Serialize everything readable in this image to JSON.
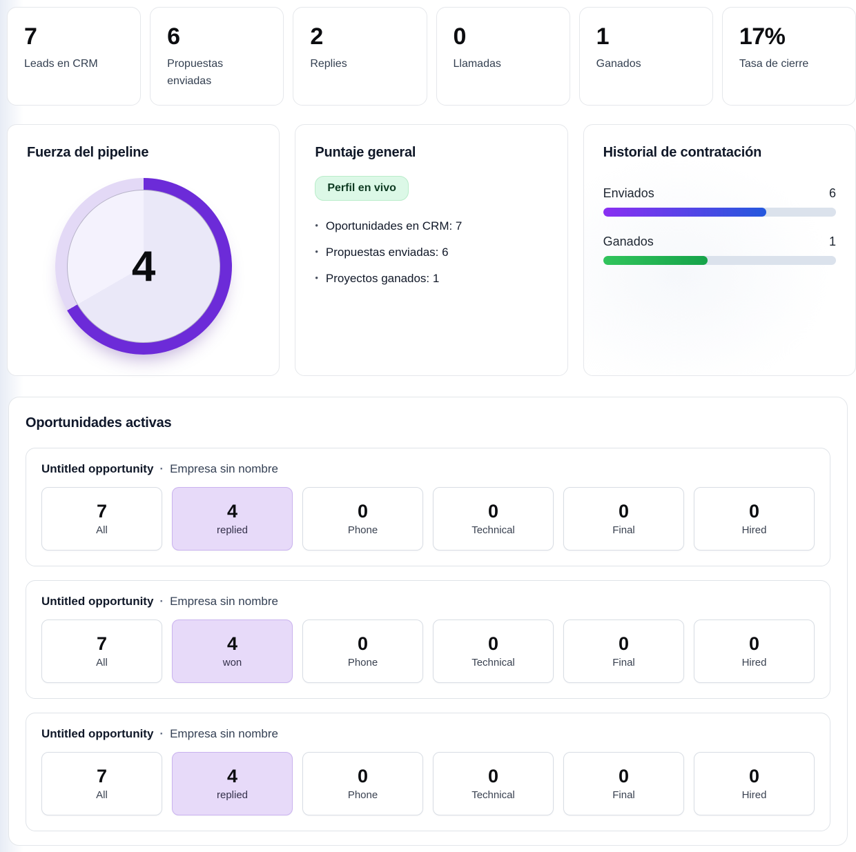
{
  "stats": [
    {
      "value": "7",
      "label": "Leads en CRM"
    },
    {
      "value": "6",
      "label": "Propuestas enviadas"
    },
    {
      "value": "2",
      "label": "Replies"
    },
    {
      "value": "0",
      "label": "Llamadas"
    },
    {
      "value": "1",
      "label": "Ganados"
    },
    {
      "value": "17%",
      "label": "Tasa de cierre"
    }
  ],
  "pipeline": {
    "title": "Fuerza del pipeline",
    "score": "4",
    "fill_deg": 240,
    "ring_color": "#6c2bd8",
    "track_color": "#e3d9f6",
    "inner_color": "#eae8f8",
    "inner_light": "#f4f2fd"
  },
  "puntaje": {
    "title": "Puntaje general",
    "badge": "Perfil en vivo",
    "bullets": [
      "Oportunidades en CRM: 7",
      "Propuestas enviadas: 6",
      "Proyectos ganados: 1"
    ]
  },
  "historial": {
    "title": "Historial de contratación",
    "bars": [
      {
        "label": "Enviados",
        "value": "6",
        "percent": 70,
        "colors": [
          "#8a2ff2",
          "#2458dd"
        ]
      },
      {
        "label": "Ganados",
        "value": "1",
        "percent": 45,
        "colors": [
          "#31c45c",
          "#16a34a"
        ]
      }
    ]
  },
  "opportunities": {
    "title": "Oportunidades activas",
    "highlight_bg": "#e7daf9",
    "highlight_border": "#c9b2ef",
    "cards": [
      {
        "name": "Untitled opportunity",
        "separator": "·",
        "company": "Empresa sin nombre",
        "tiles": [
          {
            "value": "7",
            "label": "All"
          },
          {
            "value": "4",
            "label": "replied"
          },
          {
            "value": "0",
            "label": "Phone"
          },
          {
            "value": "0",
            "label": "Technical"
          },
          {
            "value": "0",
            "label": "Final"
          },
          {
            "value": "0",
            "label": "Hired"
          }
        ]
      },
      {
        "name": "Untitled opportunity",
        "separator": "·",
        "company": "Empresa sin nombre",
        "tiles": [
          {
            "value": "7",
            "label": "All"
          },
          {
            "value": "4",
            "label": "won"
          },
          {
            "value": "0",
            "label": "Phone"
          },
          {
            "value": "0",
            "label": "Technical"
          },
          {
            "value": "0",
            "label": "Final"
          },
          {
            "value": "0",
            "label": "Hired"
          }
        ]
      },
      {
        "name": "Untitled opportunity",
        "separator": "·",
        "company": "Empresa sin nombre",
        "tiles": [
          {
            "value": "7",
            "label": "All"
          },
          {
            "value": "4",
            "label": "replied"
          },
          {
            "value": "0",
            "label": "Phone"
          },
          {
            "value": "0",
            "label": "Technical"
          },
          {
            "value": "0",
            "label": "Final"
          },
          {
            "value": "0",
            "label": "Hired"
          }
        ]
      }
    ]
  }
}
